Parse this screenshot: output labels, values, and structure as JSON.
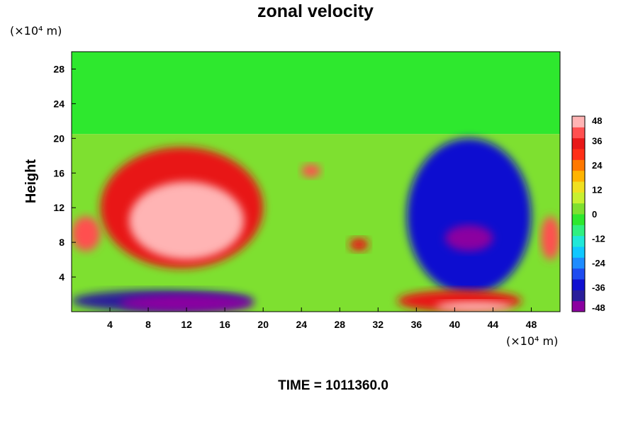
{
  "chart_data": {
    "type": "heatmap",
    "title": "zonal velocity",
    "xlabel": "",
    "ylabel": "Height",
    "x_unit": "(×10⁴ m)",
    "y_unit": "(×10⁴ m)",
    "xlim": [
      0,
      51
    ],
    "ylim": [
      0,
      30
    ],
    "x_ticks": [
      4,
      8,
      12,
      16,
      20,
      24,
      28,
      32,
      36,
      40,
      44,
      48
    ],
    "y_ticks": [
      4,
      8,
      12,
      16,
      20,
      24,
      28
    ],
    "colorbar": {
      "min": -48,
      "max": 48,
      "ticks": [
        48,
        36,
        24,
        12,
        0,
        -12,
        -24,
        -36,
        -48
      ],
      "colors": [
        "#8b00a0",
        "#2a1e9a",
        "#1010d0",
        "#1e4cf0",
        "#1e8cff",
        "#10c8ff",
        "#20e8d8",
        "#30f080",
        "#2ee82e",
        "#7ee030",
        "#c8f030",
        "#f0e020",
        "#ffb400",
        "#ff7800",
        "#ff3018",
        "#e81818",
        "#ff5050",
        "#ffb4b4"
      ]
    },
    "field_regions": [
      {
        "x": [
          0,
          51
        ],
        "y": [
          20.5,
          30
        ],
        "value": -3
      },
      {
        "x": [
          0,
          51
        ],
        "y": [
          0,
          20.5
        ],
        "value": 2
      },
      {
        "x": [
          3,
          20
        ],
        "y": [
          5,
          19
        ],
        "value": 34
      },
      {
        "x": [
          6,
          18
        ],
        "y": [
          6,
          15
        ],
        "value": 48
      },
      {
        "x": [
          0,
          3
        ],
        "y": [
          7,
          11
        ],
        "value": 38
      },
      {
        "x": [
          0,
          19
        ],
        "y": [
          0,
          2.5
        ],
        "value": -42
      },
      {
        "x": [
          5,
          19
        ],
        "y": [
          0,
          2
        ],
        "value": -48
      },
      {
        "x": [
          35,
          48
        ],
        "y": [
          2,
          20
        ],
        "value": -36
      },
      {
        "x": [
          39,
          44
        ],
        "y": [
          7,
          10
        ],
        "value": -48
      },
      {
        "x": [
          34,
          47
        ],
        "y": [
          0,
          2.5
        ],
        "value": 36
      },
      {
        "x": [
          38,
          46
        ],
        "y": [
          0,
          1.2
        ],
        "value": 48
      },
      {
        "x": [
          49,
          51
        ],
        "y": [
          6,
          11
        ],
        "value": 40
      },
      {
        "x": [
          24,
          26
        ],
        "y": [
          15.5,
          17
        ],
        "value": 40
      },
      {
        "x": [
          29,
          31
        ],
        "y": [
          7,
          8.5
        ],
        "value": 36
      }
    ]
  },
  "footer": {
    "time_label": "TIME = 1011360.0"
  }
}
